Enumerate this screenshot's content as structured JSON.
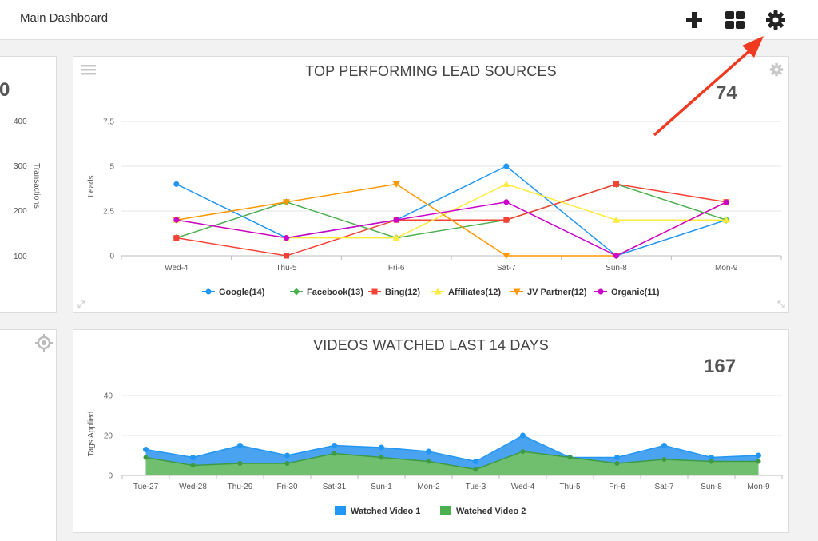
{
  "header": {
    "title": "Main Dashboard",
    "icons": [
      "plus-icon",
      "grid-icon",
      "gear-icon"
    ]
  },
  "left_top": {
    "value": "0",
    "ticks": [
      "400",
      "300",
      "200",
      "100"
    ],
    "axis_label": "Transactions"
  },
  "lead_panel": {
    "title": "TOP PERFORMING LEAD SOURCES",
    "total": "74"
  },
  "video_panel": {
    "title": "VIDEOS WATCHED LAST 14 DAYS",
    "total": "167"
  },
  "colors": {
    "annotation_arrow": "#f03a20",
    "icon_gray": "#c8c8c8"
  },
  "chart_data": [
    {
      "type": "line",
      "categories": [
        "Wed-4",
        "Thu-5",
        "Fri-6",
        "Sat-7",
        "Sun-8",
        "Mon-9"
      ],
      "ylabel": "Leads",
      "yticks": [
        "0",
        "2.5",
        "5",
        "7.5"
      ],
      "ylim": [
        0,
        7.5
      ],
      "grid": true,
      "legend_position": "bottom",
      "series": [
        {
          "name": "Google(14)",
          "color": "#2196f3",
          "marker": "circle",
          "values": [
            4,
            1,
            2,
            5,
            0,
            2
          ]
        },
        {
          "name": "Facebook(13)",
          "color": "#4caf50",
          "marker": "diamond",
          "values": [
            1,
            3,
            1,
            2,
            4,
            2
          ]
        },
        {
          "name": "Bing(12)",
          "color": "#f44336",
          "marker": "square",
          "values": [
            1,
            0,
            2,
            2,
            4,
            3
          ]
        },
        {
          "name": "Affiliates(12)",
          "color": "#ffeb3b",
          "marker": "triangle",
          "values": [
            2,
            1,
            1,
            4,
            2,
            2
          ]
        },
        {
          "name": "JV Partner(12)",
          "color": "#ff9800",
          "marker": "triangle-down",
          "values": [
            2,
            3,
            4,
            0,
            0,
            3
          ]
        },
        {
          "name": "Organic(11)",
          "color": "#cc00cc",
          "marker": "circle",
          "values": [
            2,
            1,
            2,
            3,
            0,
            3
          ]
        }
      ]
    },
    {
      "type": "area",
      "categories": [
        "Tue-27",
        "Wed-28",
        "Thu-29",
        "Fri-30",
        "Sat-31",
        "Sun-1",
        "Mon-2",
        "Tue-3",
        "Wed-4",
        "Thu-5",
        "Fri-6",
        "Sat-7",
        "Sun-8",
        "Mon-9"
      ],
      "ylabel": "Tags Applied",
      "yticks": [
        "0",
        "20",
        "40"
      ],
      "ylim": [
        0,
        40
      ],
      "grid": true,
      "legend_position": "bottom",
      "series": [
        {
          "name": "Watched Video 1",
          "color": "#2196f3",
          "values": [
            13,
            9,
            15,
            10,
            15,
            14,
            12,
            7,
            20,
            9,
            9,
            15,
            9,
            10
          ]
        },
        {
          "name": "Watched Video 2",
          "color": "#4caf50",
          "values": [
            9,
            5,
            6,
            6,
            11,
            9,
            7,
            3,
            12,
            9,
            6,
            8,
            7,
            7
          ]
        }
      ]
    }
  ]
}
